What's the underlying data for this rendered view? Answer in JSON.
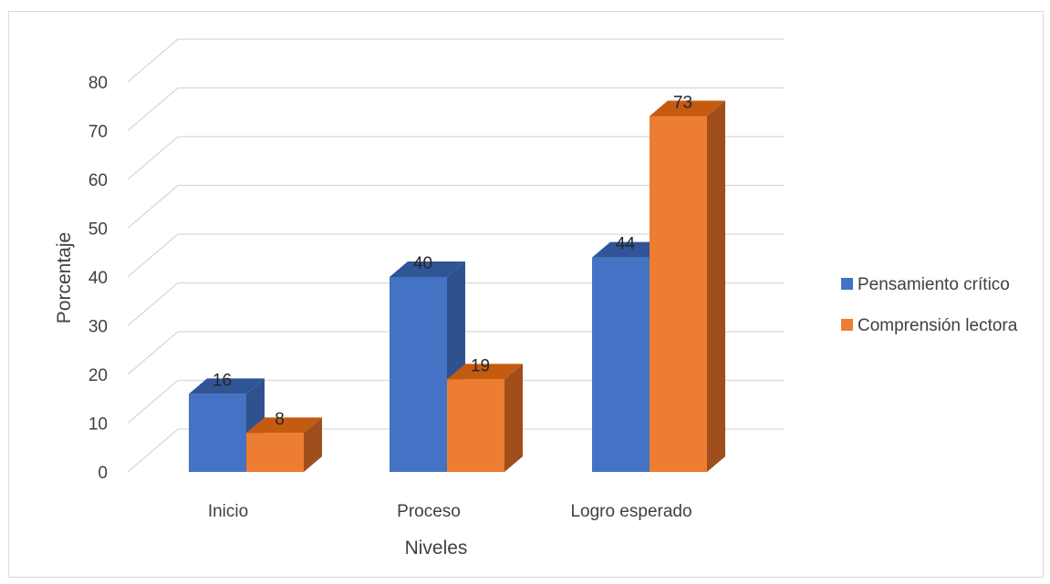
{
  "chart_data": {
    "type": "bar",
    "categories": [
      "Inicio",
      "Proceso",
      "Logro esperado"
    ],
    "series": [
      {
        "name": "Pensamiento crítico",
        "values": [
          16,
          40,
          44
        ],
        "color": "#4472C4",
        "side_color": "#2F528F",
        "top_color": "#2F5597"
      },
      {
        "name": "Comprensión lectora",
        "values": [
          8,
          19,
          73
        ],
        "color": "#ED7D31",
        "side_color": "#A04E1B",
        "top_color": "#C55A11"
      }
    ],
    "y_ticks": [
      "0",
      "10",
      "20",
      "30",
      "40",
      "50",
      "60",
      "70",
      "80"
    ],
    "ylim": [
      0,
      80
    ],
    "xlabel": "Niveles",
    "ylabel": "Porcentaje",
    "title": "",
    "legend_position": "right",
    "grid": true,
    "data_labels": true,
    "style": "3d-clustered-column"
  }
}
